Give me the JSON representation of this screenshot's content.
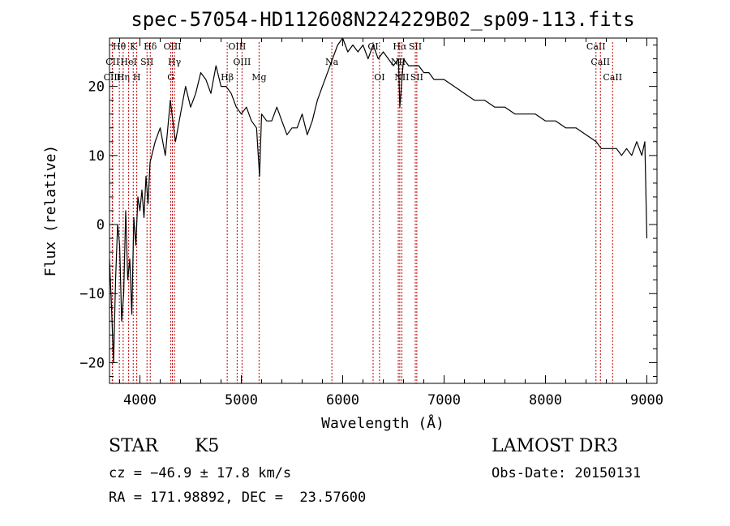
{
  "chart_data": {
    "type": "line",
    "title": "spec-57054-HD112608N224229B02_sp09-113.fits",
    "xlabel": "Wavelength (Å)",
    "ylabel": "Flux (relative)",
    "xlim": [
      3700,
      9100
    ],
    "ylim": [
      -23,
      27
    ],
    "x_ticks": [
      4000,
      5000,
      6000,
      7000,
      8000,
      9000
    ],
    "y_ticks": [
      -20,
      -10,
      0,
      10,
      20
    ],
    "x_tick_labels": [
      "4000",
      "5000",
      "6000",
      "7000",
      "8000",
      "9000"
    ],
    "y_tick_labels": [
      "−20",
      "−10",
      "0",
      "10",
      "20"
    ],
    "series": [
      {
        "name": "spectrum",
        "color": "#000000",
        "x": [
          3700,
          3720,
          3740,
          3760,
          3780,
          3800,
          3820,
          3840,
          3860,
          3880,
          3900,
          3920,
          3940,
          3960,
          3980,
          4000,
          4020,
          4040,
          4060,
          4080,
          4100,
          4150,
          4200,
          4250,
          4300,
          4350,
          4400,
          4450,
          4500,
          4550,
          4600,
          4650,
          4700,
          4750,
          4800,
          4850,
          4900,
          4950,
          5000,
          5050,
          5100,
          5150,
          5180,
          5200,
          5250,
          5300,
          5350,
          5400,
          5450,
          5500,
          5550,
          5600,
          5650,
          5700,
          5750,
          5800,
          5850,
          5900,
          5950,
          6000,
          6050,
          6100,
          6150,
          6200,
          6250,
          6300,
          6350,
          6400,
          6450,
          6500,
          6550,
          6563,
          6600,
          6650,
          6700,
          6750,
          6800,
          6850,
          6900,
          6950,
          7000,
          7100,
          7200,
          7300,
          7400,
          7500,
          7600,
          7700,
          7800,
          7900,
          8000,
          8100,
          8200,
          8300,
          8400,
          8500,
          8550,
          8600,
          8650,
          8700,
          8750,
          8800,
          8850,
          8900,
          8950,
          8980,
          9000
        ],
        "y": [
          -5,
          -12,
          -20,
          -8,
          0,
          -3,
          -14,
          -10,
          2,
          -8,
          -5,
          -13,
          1,
          -3,
          4,
          2,
          5,
          1,
          7,
          3,
          9,
          12,
          14,
          10,
          18,
          12,
          16,
          20,
          17,
          19,
          22,
          21,
          19,
          23,
          20,
          20,
          19,
          17,
          16,
          17,
          15,
          14,
          7,
          16,
          15,
          15,
          17,
          15,
          13,
          14,
          14,
          16,
          13,
          15,
          18,
          20,
          22,
          24,
          26,
          27,
          25,
          26,
          25,
          26,
          24,
          26,
          24,
          25,
          24,
          23,
          24,
          17,
          24,
          23,
          23,
          23,
          22,
          22,
          21,
          21,
          21,
          20,
          19,
          18,
          18,
          17,
          17,
          16,
          16,
          16,
          15,
          15,
          14,
          14,
          13,
          12,
          11,
          11,
          11,
          11,
          10,
          11,
          10,
          12,
          10,
          12,
          -2
        ]
      }
    ],
    "line_markers": [
      {
        "label": "Hθ",
        "x": 3797,
        "row": 0
      },
      {
        "label": "Hη",
        "x": 3835,
        "row": 2
      },
      {
        "label": "CII",
        "x": 3730,
        "row": 1
      },
      {
        "label": "CIII",
        "x": 3727,
        "row": 2
      },
      {
        "label": "HeI",
        "x": 3889,
        "row": 1
      },
      {
        "label": "K",
        "x": 3934,
        "row": 0
      },
      {
        "label": "H",
        "x": 3969,
        "row": 2
      },
      {
        "label": "SII",
        "x": 4070,
        "row": 1
      },
      {
        "label": "Hδ",
        "x": 4102,
        "row": 0
      },
      {
        "label": "OIII",
        "x": 4320,
        "row": 0
      },
      {
        "label": "Hγ",
        "x": 4341,
        "row": 1
      },
      {
        "label": "G",
        "x": 4305,
        "row": 2
      },
      {
        "label": "Hβ",
        "x": 4861,
        "row": 2
      },
      {
        "label": "OIII",
        "x": 4959,
        "row": 0
      },
      {
        "label": "OIII",
        "x": 5007,
        "row": 1
      },
      {
        "label": "Mg",
        "x": 5175,
        "row": 2
      },
      {
        "label": "Na",
        "x": 5893,
        "row": 1
      },
      {
        "label": "OI",
        "x": 6300,
        "row": 0
      },
      {
        "label": "OI",
        "x": 6363,
        "row": 2
      },
      {
        "label": "Hα",
        "x": 6563,
        "row": 0
      },
      {
        "label": "NII",
        "x": 6548,
        "row": 1
      },
      {
        "label": "NII",
        "x": 6583,
        "row": 2
      },
      {
        "label": "SII",
        "x": 6716,
        "row": 0
      },
      {
        "label": "SII",
        "x": 6731,
        "row": 2
      },
      {
        "label": "CaII",
        "x": 8498,
        "row": 0
      },
      {
        "label": "CaII",
        "x": 8542,
        "row": 1
      },
      {
        "label": "CaII",
        "x": 8662,
        "row": 2
      }
    ]
  },
  "footer": {
    "object_class": "STAR",
    "subclass": "K5",
    "survey": "LAMOST DR3",
    "cz": "cz = −46.9 ± 17.8 km/s",
    "obs_date": "Obs-Date: 20150131",
    "coords": "RA = 171.98892, DEC =  23.57600"
  },
  "colors": {
    "line": "#000000",
    "marker": "#c00000",
    "background": "#ffffff"
  }
}
